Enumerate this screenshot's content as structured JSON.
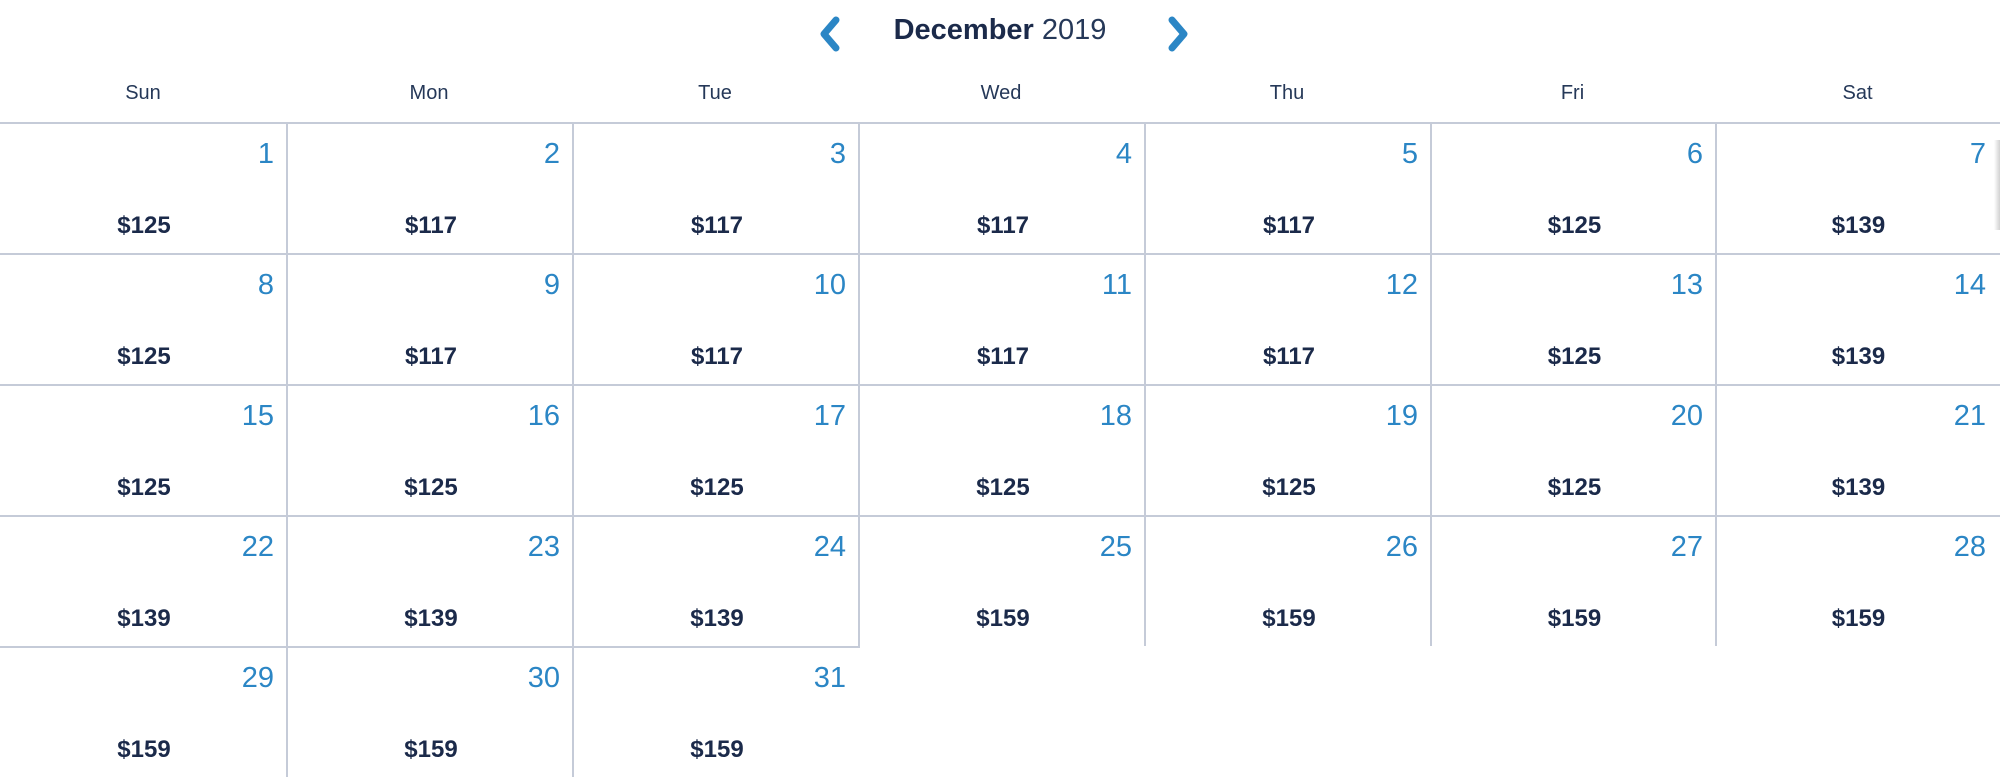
{
  "header": {
    "month": "December",
    "year": "2019",
    "prev_icon": "chevron-left-icon",
    "next_icon": "chevron-right-icon",
    "accent_color": "#2b86c5"
  },
  "weekdays": [
    "Sun",
    "Mon",
    "Tue",
    "Wed",
    "Thu",
    "Fri",
    "Sat"
  ],
  "first_weekday_index": 0,
  "days": [
    {
      "day": "1",
      "price": "$125"
    },
    {
      "day": "2",
      "price": "$117"
    },
    {
      "day": "3",
      "price": "$117"
    },
    {
      "day": "4",
      "price": "$117"
    },
    {
      "day": "5",
      "price": "$117"
    },
    {
      "day": "6",
      "price": "$125"
    },
    {
      "day": "7",
      "price": "$139"
    },
    {
      "day": "8",
      "price": "$125"
    },
    {
      "day": "9",
      "price": "$117"
    },
    {
      "day": "10",
      "price": "$117"
    },
    {
      "day": "11",
      "price": "$117"
    },
    {
      "day": "12",
      "price": "$117"
    },
    {
      "day": "13",
      "price": "$125"
    },
    {
      "day": "14",
      "price": "$139"
    },
    {
      "day": "15",
      "price": "$125"
    },
    {
      "day": "16",
      "price": "$125"
    },
    {
      "day": "17",
      "price": "$125"
    },
    {
      "day": "18",
      "price": "$125"
    },
    {
      "day": "19",
      "price": "$125"
    },
    {
      "day": "20",
      "price": "$125"
    },
    {
      "day": "21",
      "price": "$139"
    },
    {
      "day": "22",
      "price": "$139"
    },
    {
      "day": "23",
      "price": "$139"
    },
    {
      "day": "24",
      "price": "$139"
    },
    {
      "day": "25",
      "price": "$159"
    },
    {
      "day": "26",
      "price": "$159"
    },
    {
      "day": "27",
      "price": "$159"
    },
    {
      "day": "28",
      "price": "$159"
    },
    {
      "day": "29",
      "price": "$159"
    },
    {
      "day": "30",
      "price": "$159"
    },
    {
      "day": "31",
      "price": "$159"
    }
  ]
}
